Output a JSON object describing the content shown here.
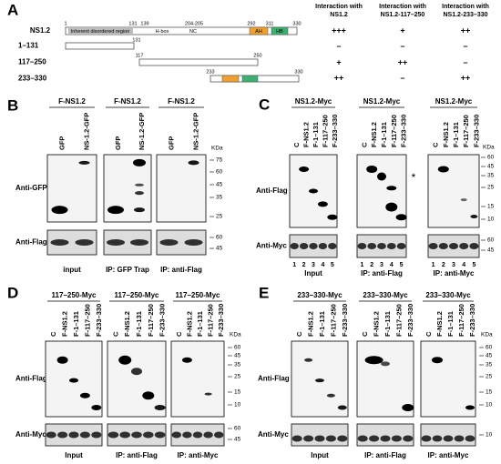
{
  "panel_a": {
    "label": "A",
    "protein": {
      "name": "NS1.2",
      "positions": [
        "1",
        "131",
        "139",
        "204-205",
        "292",
        "311",
        "330"
      ],
      "regions": [
        "Inherent disordered region",
        "H-box",
        "NC",
        "AH",
        "HB"
      ]
    },
    "fragments": [
      {
        "name": "1–131",
        "labels": [
          "131"
        ]
      },
      {
        "name": "117–250",
        "labels": [
          "117",
          "250"
        ]
      },
      {
        "name": "233–330",
        "labels": [
          "233",
          "330"
        ]
      }
    ],
    "table": {
      "columns": [
        [
          "Interaction with",
          "NS1.2"
        ],
        [
          "Interaction with",
          "NS1.2-117–250"
        ],
        [
          "Interaction with",
          "NS1.2-233–330"
        ]
      ],
      "rows": [
        [
          "+++",
          "+",
          "++"
        ],
        [
          "–",
          "–",
          "–"
        ],
        [
          "+",
          "++",
          "–"
        ],
        [
          "++",
          "–",
          "++"
        ]
      ]
    }
  },
  "panel_b": {
    "label": "B",
    "rows": [
      "Anti-GFP",
      "Anti-Flag"
    ],
    "markers_unit": "KDa",
    "markers_top": [
      75,
      60,
      45,
      35,
      25
    ],
    "markers_bottom": [
      60,
      45
    ],
    "blots": [
      {
        "header": "F-NS1.2",
        "lanes": [
          "GFP",
          "NS-1.2-GFP"
        ],
        "caption": "input"
      },
      {
        "header": "F-NS1.2",
        "lanes": [
          "GFP",
          "NS-1.2-GFP"
        ],
        "caption": "IP: GFP Trap"
      },
      {
        "header": "F-NS1.2",
        "lanes": [
          "GFP",
          "NS-1.2-GFP"
        ],
        "caption": "IP: anti-Flag"
      }
    ]
  },
  "panel_c": {
    "label": "C",
    "rows": [
      "Anti-Flag",
      "Anti-Myc"
    ],
    "markers_unit": "KDa",
    "markers_top": [
      60,
      45,
      35,
      25,
      15,
      10
    ],
    "markers_bottom": [
      60,
      45
    ],
    "asterisk": "*",
    "blots": [
      {
        "header": "NS1.2-Myc",
        "lanes": [
          "C",
          "F-NS1.2",
          "F-1–131",
          "F-117–250",
          "F-233–330"
        ],
        "lane_numbers": [
          1,
          2,
          3,
          4,
          5
        ],
        "caption": "Input"
      },
      {
        "header": "NS1.2-Myc",
        "lanes": [
          "C",
          "F-NS1.2",
          "F-1–131",
          "F-117–250",
          "F-233–330"
        ],
        "lane_numbers": [
          1,
          2,
          3,
          4,
          5
        ],
        "caption": "IP: anti-Flag"
      },
      {
        "header": "NS1.2-Myc",
        "lanes": [
          "C",
          "F-NS1.2",
          "F-1–131",
          "F-117–250",
          "F-233–330"
        ],
        "lane_numbers": [
          1,
          2,
          3,
          4,
          5
        ],
        "caption": "IP: anti-Myc"
      }
    ]
  },
  "panel_d": {
    "label": "D",
    "rows": [
      "Anti-Flag",
      "Anti-Myc"
    ],
    "markers_unit": "KDa",
    "markers_top": [
      60,
      45,
      35,
      25,
      15,
      10
    ],
    "markers_bottom": [
      60,
      45
    ],
    "blots": [
      {
        "header": "117–250-Myc",
        "lanes": [
          "C",
          "F-NS1.2",
          "F-1–131",
          "F-117–250",
          "F-233–330"
        ],
        "caption": "Input"
      },
      {
        "header": "117–250-Myc",
        "lanes": [
          "C",
          "F-NS1.2",
          "F-1–131",
          "F-117–250",
          "F-233–330"
        ],
        "caption": "IP: anti-Flag"
      },
      {
        "header": "117–250-Myc",
        "lanes": [
          "C",
          "F-NS1.2",
          "F-1–131",
          "F-117–250",
          "F-233–330"
        ],
        "caption": "IP: anti-Myc"
      }
    ]
  },
  "panel_e": {
    "label": "E",
    "rows": [
      "Anti-Flag",
      "Anti-Myc"
    ],
    "markers_unit": "KDa",
    "markers_top": [
      60,
      45,
      35,
      25,
      15,
      10
    ],
    "markers_bottom": [
      10
    ],
    "blots": [
      {
        "header": "233–330-Myc",
        "lanes": [
          "C",
          "F-NS1.2",
          "F-1–131",
          "F-117–250",
          "F-233–330"
        ],
        "caption": "Input"
      },
      {
        "header": "233–330-Myc",
        "lanes": [
          "C",
          "F-NS1.2",
          "F-1–131",
          "F-117–250",
          "F-233–330"
        ],
        "caption": "IP: anti-Flag"
      },
      {
        "header": "233–330-Myc",
        "lanes": [
          "C",
          "F-NS1.2",
          "F-1–131",
          "F-117–250",
          "F-233–330"
        ],
        "caption": "IP: anti-Myc"
      }
    ]
  }
}
